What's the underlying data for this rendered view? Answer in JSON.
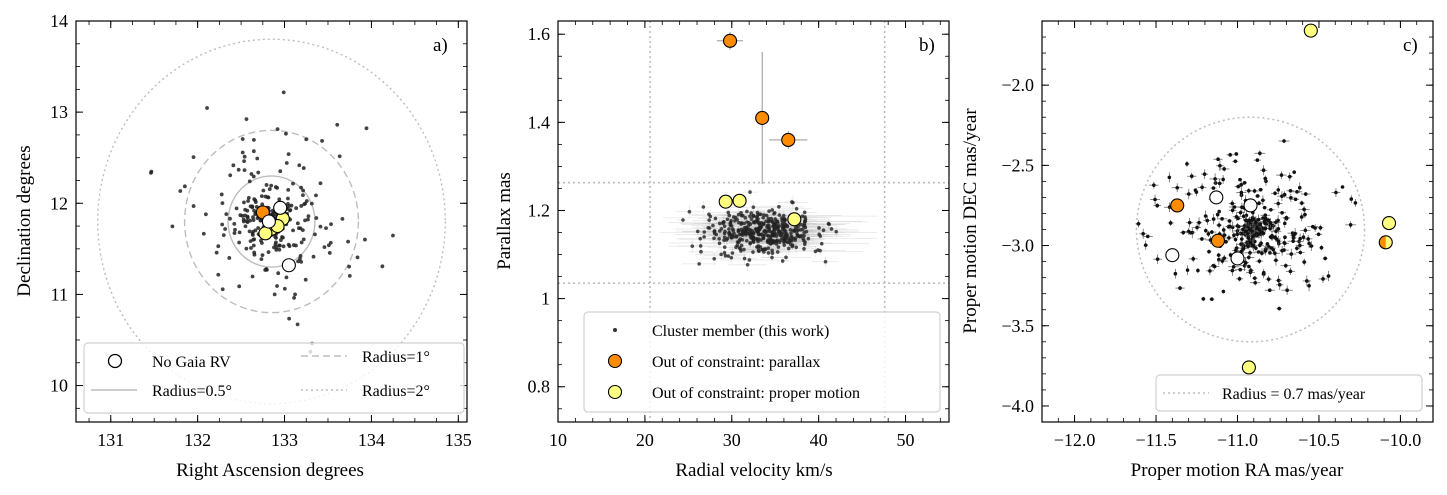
{
  "chart_data": [
    {
      "type": "scatter",
      "panel_label": "a)",
      "xlabel": "Right Ascension degrees",
      "ylabel": "Declination degrees",
      "xlim": [
        130.6,
        135.1
      ],
      "ylim": [
        9.6,
        14.0
      ],
      "xticks": [
        131,
        132,
        133,
        134,
        135
      ],
      "yticks": [
        10,
        11,
        12,
        13,
        14
      ],
      "center": [
        132.85,
        11.8
      ],
      "circles": [
        {
          "radius": 0.5,
          "style": "solid",
          "label": "Radius=0.5°"
        },
        {
          "radius": 1,
          "style": "dashed",
          "label": "Radius=1°"
        },
        {
          "radius": 2,
          "style": "dotted",
          "label": "Radius=2°"
        }
      ],
      "series": [
        {
          "name": "Out of constraint: parallax",
          "color": "#ff8c00",
          "points": [
            [
              132.75,
              11.9
            ]
          ]
        },
        {
          "name": "Out of constraint: proper motion",
          "color": "#ffff80",
          "points": [
            [
              132.85,
              11.72
            ],
            [
              132.78,
              11.67
            ],
            [
              132.98,
              11.83
            ],
            [
              132.92,
              11.75
            ]
          ]
        },
        {
          "name": "No Gaia RV",
          "color": "#ffffff",
          "points": [
            [
              132.95,
              11.95
            ],
            [
              132.82,
              11.8
            ],
            [
              133.05,
              11.32
            ]
          ]
        }
      ],
      "legend": {
        "location": "lower-center",
        "columns": 2,
        "entries": [
          "No Gaia RV",
          "Radius=1°",
          "Radius=0.5°",
          "Radius=2°"
        ]
      }
    },
    {
      "type": "scatter",
      "panel_label": "b)",
      "xlabel": "Radial velocity km/s",
      "ylabel": "Parallax mas",
      "xlim": [
        10,
        55
      ],
      "ylim": [
        0.72,
        1.63
      ],
      "xticks": [
        10,
        20,
        30,
        40,
        50
      ],
      "yticks": [
        0.8,
        1.0,
        1.2,
        1.4,
        1.6
      ],
      "constraint_lines": {
        "x": [
          20.6,
          47.6
        ],
        "y": [
          1.035,
          1.263
        ]
      },
      "series": [
        {
          "name": "Out of constraint: parallax",
          "color": "#ff8c00",
          "points": [
            [
              29.8,
              1.585
            ],
            [
              33.5,
              1.41
            ],
            [
              36.5,
              1.36
            ]
          ],
          "errors_y": [
            0.02,
            0.15,
            0.02
          ],
          "errors_x": [
            1.5,
            0.7,
            2.2
          ]
        },
        {
          "name": "Out of constraint: proper motion",
          "color": "#ffff80",
          "points": [
            [
              29.3,
              1.22
            ],
            [
              30.9,
              1.222
            ],
            [
              37.2,
              1.18
            ]
          ]
        }
      ],
      "legend": {
        "location": "lower-right",
        "entries": [
          "Cluster member (this work)",
          "Out of constraint: parallax",
          "Out of constraint: proper motion"
        ]
      }
    },
    {
      "type": "scatter",
      "panel_label": "c)",
      "xlabel": "Proper motion RA mas/year",
      "ylabel": "Proper motion DEC mas/year",
      "xlim": [
        -12.2,
        -9.8
      ],
      "ylim": [
        -4.1,
        -1.6
      ],
      "xticks": [
        -12.0,
        -11.5,
        -11.0,
        -10.5,
        -10.0
      ],
      "xtick_labels": [
        "−12.0",
        "−11.5",
        "−11.0",
        "−10.5",
        "−10.0"
      ],
      "yticks": [
        -4.0,
        -3.5,
        -3.0,
        -2.5,
        -2.0
      ],
      "ytick_labels": [
        "−4.0",
        "−3.5",
        "−3.0",
        "−2.5",
        "−2.0"
      ],
      "center": [
        -10.92,
        -2.9
      ],
      "circle": {
        "radius": 0.7,
        "style": "dotted",
        "label": "Radius = 0.7 mas/year"
      },
      "series": [
        {
          "name": "Out of constraint: parallax",
          "color": "#ff8c00",
          "points": [
            [
              -11.37,
              -2.75
            ],
            [
              -11.12,
              -2.97
            ]
          ]
        },
        {
          "name": "Out of constraint: proper motion",
          "color": "#ffff80",
          "points": [
            [
              -10.55,
              -1.66
            ],
            [
              -10.07,
              -2.86
            ],
            [
              -10.93,
              -3.76
            ]
          ]
        },
        {
          "name": "Split colour (parallax + proper motion)",
          "color": "#ff8c00",
          "points": [
            [
              -10.09,
              -2.98
            ]
          ]
        },
        {
          "name": "No Gaia RV",
          "color": "#ffffff",
          "points": [
            [
              -11.13,
              -2.7
            ],
            [
              -10.92,
              -2.75
            ],
            [
              -11.4,
              -3.06
            ],
            [
              -11.0,
              -3.08
            ]
          ]
        }
      ],
      "legend": {
        "location": "lower-right",
        "entries": [
          "Radius = 0.7 mas/year"
        ]
      }
    }
  ]
}
